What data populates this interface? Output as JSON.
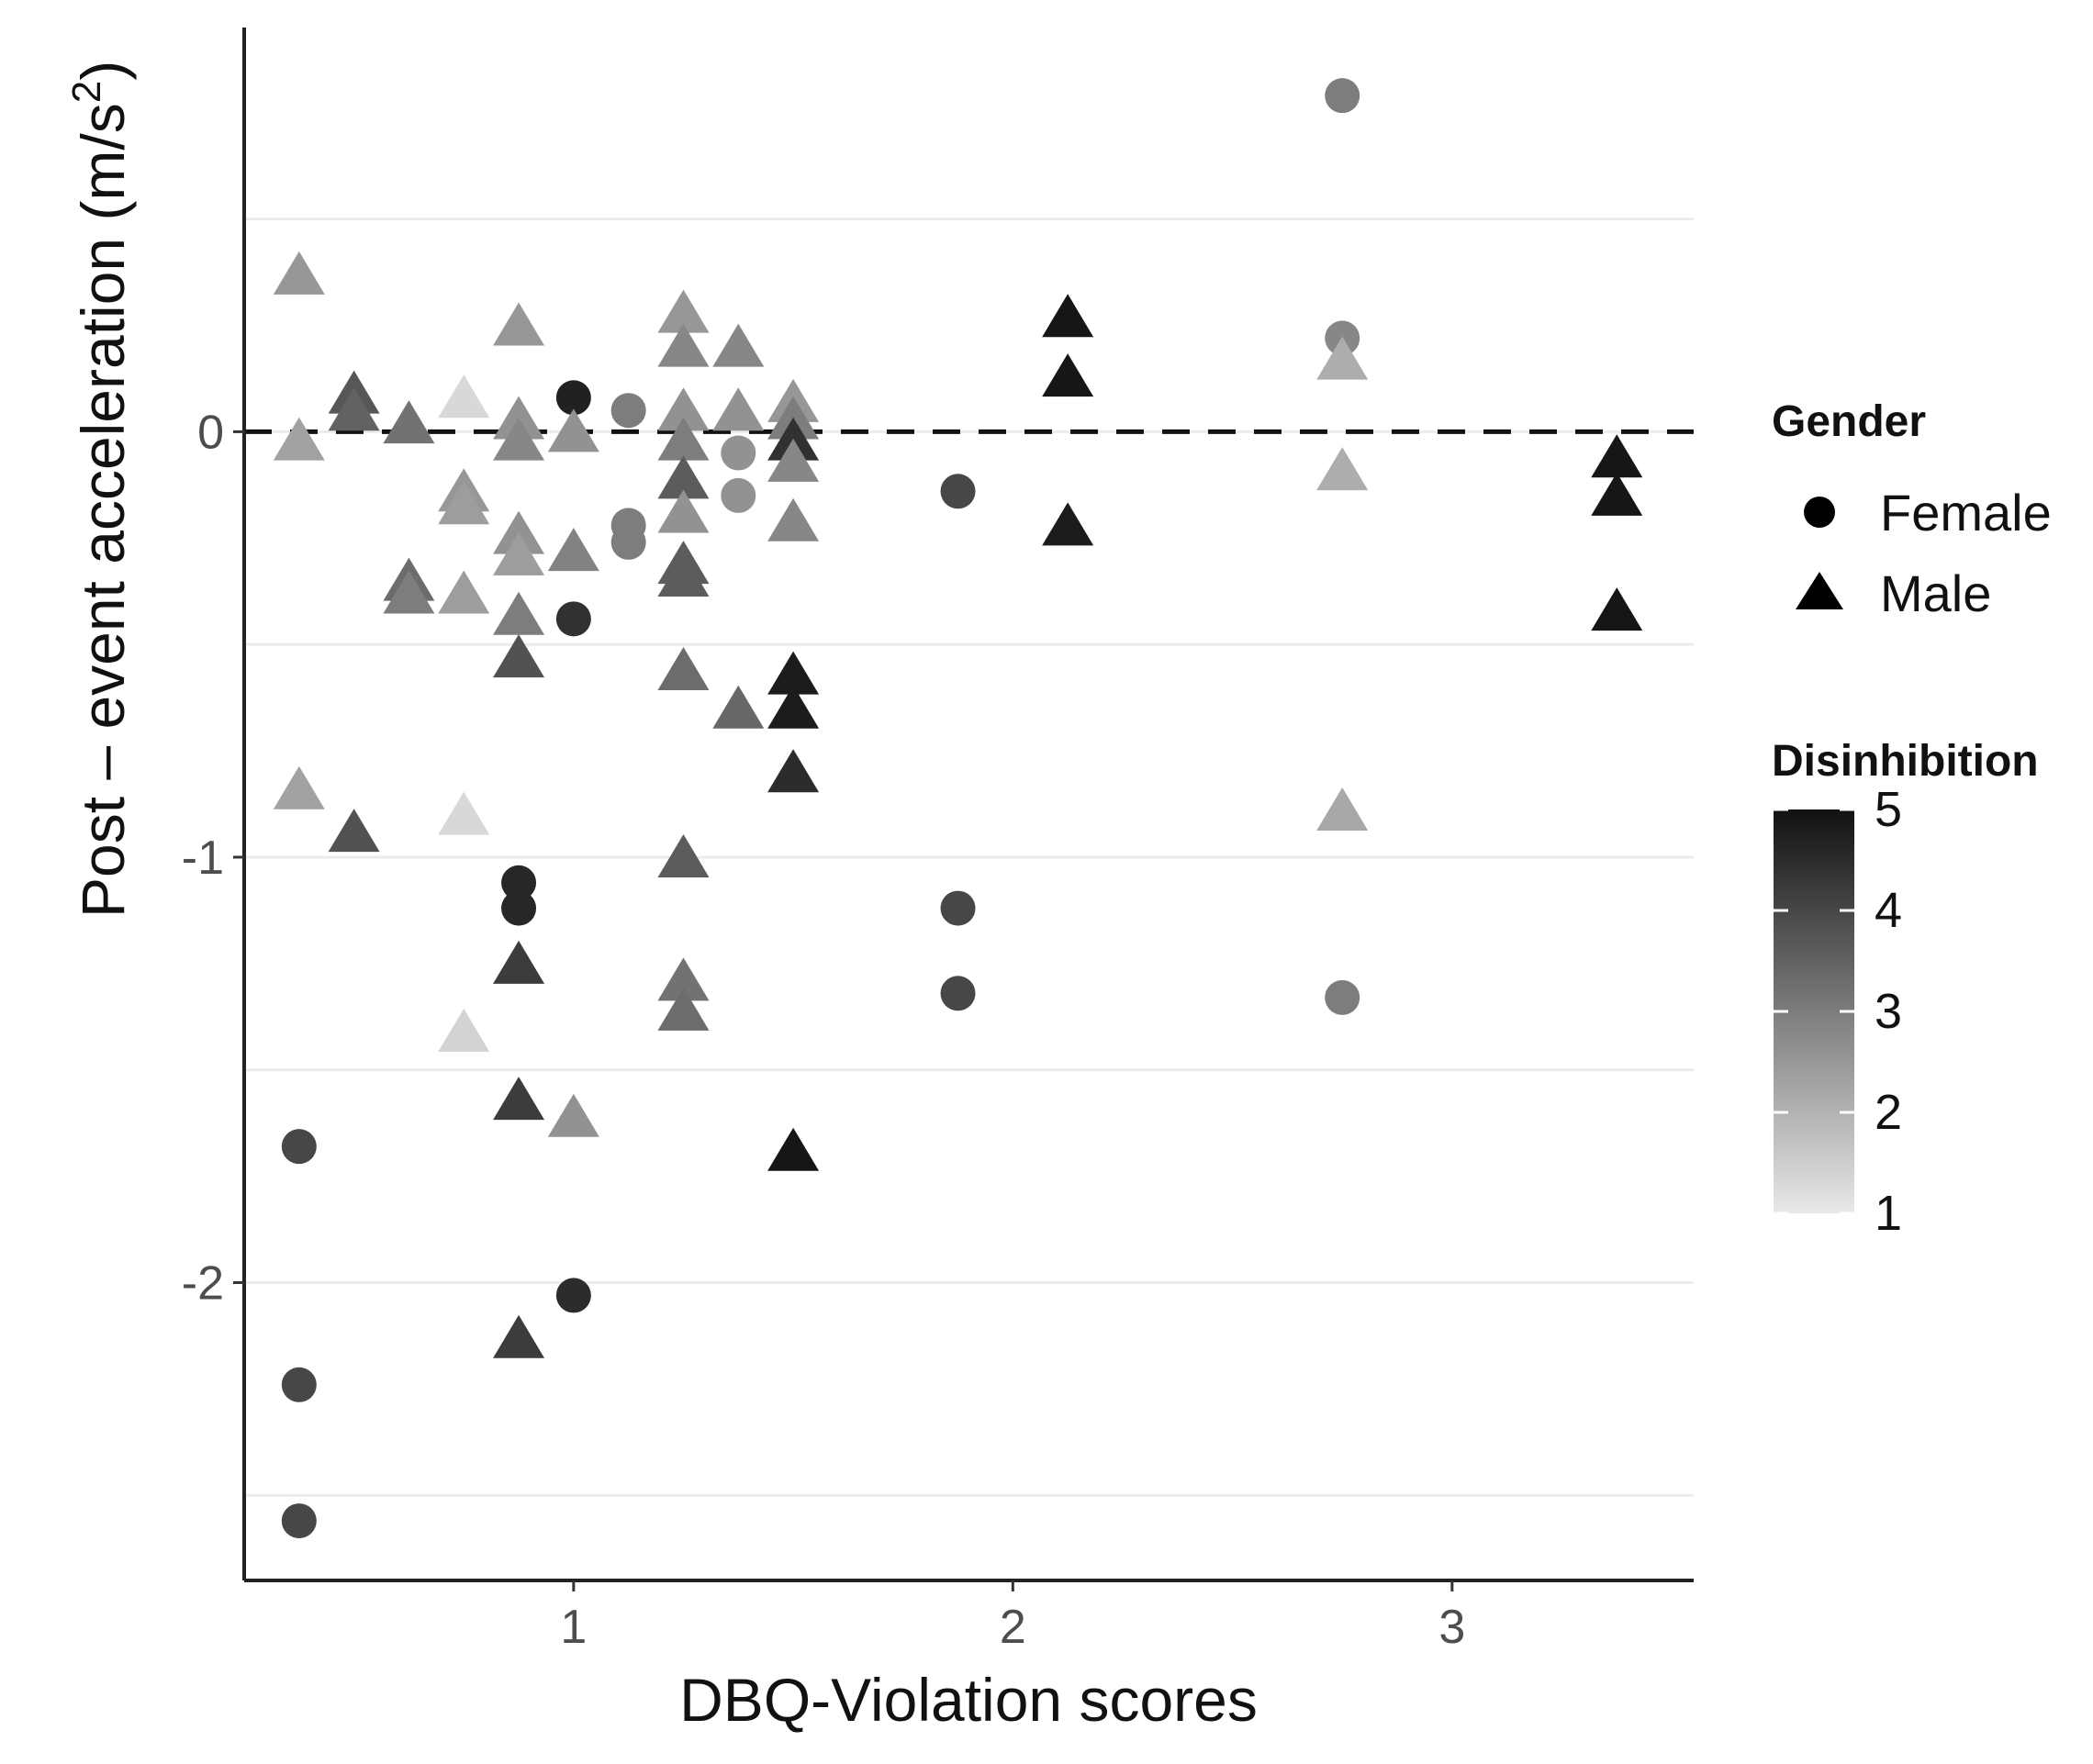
{
  "chart_data": {
    "type": "scatter",
    "title": "",
    "xlabel": "DBQ-Violation scores",
    "ylabel": "Post – event acceleration (m/s²)",
    "ylabel_main": "Post – event acceleration (m/s",
    "ylabel_sup": "2",
    "ylabel_close": ")",
    "xlim": [
      0.25,
      3.55
    ],
    "ylim": [
      -2.7,
      0.95
    ],
    "xticks": [
      1,
      2,
      3
    ],
    "yticks": [
      0,
      -1,
      -2
    ],
    "xtick_labels": [
      "1",
      "2",
      "3"
    ],
    "ytick_labels": [
      "0",
      "-1",
      "-2"
    ],
    "minor_gridlines_y": [
      0.5,
      -0.5,
      -1.5,
      -2.5
    ],
    "reference_line": {
      "y": 0,
      "style": "dashed"
    },
    "legend": {
      "position": "right",
      "shape_title": "Gender",
      "shape_entries": [
        {
          "label": "Female",
          "shape": "circle"
        },
        {
          "label": "Male",
          "shape": "triangle"
        }
      ],
      "color_title": "Disinhibition",
      "color_range": [
        1,
        5
      ],
      "color_ticks": [
        "1",
        "2",
        "3",
        "4",
        "5"
      ],
      "color_low": "#e8e8e8",
      "color_high": "#111111"
    },
    "series": [
      {
        "name": "Female",
        "shape": "circle",
        "points": [
          {
            "x": 0.375,
            "y": -1.68,
            "d": 4.0
          },
          {
            "x": 0.375,
            "y": -2.24,
            "d": 4.0
          },
          {
            "x": 0.375,
            "y": -2.56,
            "d": 4.0
          },
          {
            "x": 0.875,
            "y": -1.06,
            "d": 4.6
          },
          {
            "x": 0.875,
            "y": -1.12,
            "d": 4.6
          },
          {
            "x": 1.0,
            "y": 0.08,
            "d": 4.7
          },
          {
            "x": 1.0,
            "y": -0.44,
            "d": 4.4
          },
          {
            "x": 1.0,
            "y": -2.03,
            "d": 4.5
          },
          {
            "x": 1.125,
            "y": 0.05,
            "d": 3.0
          },
          {
            "x": 1.125,
            "y": -0.22,
            "d": 3.0
          },
          {
            "x": 1.125,
            "y": -0.26,
            "d": 3.0
          },
          {
            "x": 1.375,
            "y": -0.05,
            "d": 2.6
          },
          {
            "x": 1.375,
            "y": -0.15,
            "d": 2.6
          },
          {
            "x": 1.875,
            "y": -0.14,
            "d": 4.0
          },
          {
            "x": 1.875,
            "y": -1.12,
            "d": 4.0
          },
          {
            "x": 1.875,
            "y": -1.32,
            "d": 4.0
          },
          {
            "x": 2.75,
            "y": 0.79,
            "d": 3.0
          },
          {
            "x": 2.75,
            "y": 0.22,
            "d": 2.8
          },
          {
            "x": 2.75,
            "y": -1.33,
            "d": 3.0
          }
        ]
      },
      {
        "name": "Male",
        "shape": "triangle",
        "points": [
          {
            "x": 0.375,
            "y": 0.37,
            "d": 2.5
          },
          {
            "x": 0.375,
            "y": -0.02,
            "d": 2.3
          },
          {
            "x": 0.375,
            "y": -0.84,
            "d": 2.3
          },
          {
            "x": 0.5,
            "y": 0.09,
            "d": 3.7
          },
          {
            "x": 0.5,
            "y": 0.05,
            "d": 3.5
          },
          {
            "x": 0.5,
            "y": -0.94,
            "d": 3.8
          },
          {
            "x": 0.625,
            "y": 0.02,
            "d": 3.2
          },
          {
            "x": 0.625,
            "y": -0.35,
            "d": 3.3
          },
          {
            "x": 0.625,
            "y": -0.38,
            "d": 3.0
          },
          {
            "x": 0.75,
            "y": 0.08,
            "d": 1.3
          },
          {
            "x": 0.75,
            "y": -0.14,
            "d": 2.5
          },
          {
            "x": 0.75,
            "y": -0.17,
            "d": 2.4
          },
          {
            "x": 0.75,
            "y": -0.38,
            "d": 2.4
          },
          {
            "x": 0.75,
            "y": -0.9,
            "d": 1.3
          },
          {
            "x": 0.75,
            "y": -1.41,
            "d": 1.4
          },
          {
            "x": 0.875,
            "y": 0.25,
            "d": 2.5
          },
          {
            "x": 0.875,
            "y": 0.03,
            "d": 2.6
          },
          {
            "x": 0.875,
            "y": -0.02,
            "d": 2.8
          },
          {
            "x": 0.875,
            "y": -0.24,
            "d": 2.6
          },
          {
            "x": 0.875,
            "y": -0.29,
            "d": 2.4
          },
          {
            "x": 0.875,
            "y": -0.43,
            "d": 3.0
          },
          {
            "x": 0.875,
            "y": -0.53,
            "d": 3.8
          },
          {
            "x": 0.875,
            "y": -1.25,
            "d": 4.2
          },
          {
            "x": 0.875,
            "y": -1.57,
            "d": 4.2
          },
          {
            "x": 0.875,
            "y": -2.13,
            "d": 4.2
          },
          {
            "x": 1.0,
            "y": 0.0,
            "d": 2.6
          },
          {
            "x": 1.0,
            "y": -0.28,
            "d": 2.9
          },
          {
            "x": 1.0,
            "y": -1.61,
            "d": 2.6
          },
          {
            "x": 1.25,
            "y": 0.28,
            "d": 2.5
          },
          {
            "x": 1.25,
            "y": 0.2,
            "d": 2.8
          },
          {
            "x": 1.25,
            "y": 0.05,
            "d": 2.6
          },
          {
            "x": 1.25,
            "y": -0.02,
            "d": 3.0
          },
          {
            "x": 1.25,
            "y": -0.11,
            "d": 3.6
          },
          {
            "x": 1.25,
            "y": -0.19,
            "d": 2.6
          },
          {
            "x": 1.25,
            "y": -0.31,
            "d": 3.6
          },
          {
            "x": 1.25,
            "y": -0.34,
            "d": 3.6
          },
          {
            "x": 1.25,
            "y": -0.56,
            "d": 3.3
          },
          {
            "x": 1.25,
            "y": -1.0,
            "d": 3.6
          },
          {
            "x": 1.25,
            "y": -1.29,
            "d": 3.2
          },
          {
            "x": 1.25,
            "y": -1.36,
            "d": 3.3
          },
          {
            "x": 1.375,
            "y": 0.2,
            "d": 2.8
          },
          {
            "x": 1.375,
            "y": 0.05,
            "d": 2.6
          },
          {
            "x": 1.375,
            "y": -0.65,
            "d": 3.4
          },
          {
            "x": 1.5,
            "y": 0.07,
            "d": 2.5
          },
          {
            "x": 1.5,
            "y": 0.03,
            "d": 3.0
          },
          {
            "x": 1.5,
            "y": -0.02,
            "d": 4.4
          },
          {
            "x": 1.5,
            "y": -0.07,
            "d": 2.8
          },
          {
            "x": 1.5,
            "y": -0.21,
            "d": 2.8
          },
          {
            "x": 1.5,
            "y": -0.57,
            "d": 4.8
          },
          {
            "x": 1.5,
            "y": -0.65,
            "d": 4.8
          },
          {
            "x": 1.5,
            "y": -0.8,
            "d": 4.5
          },
          {
            "x": 1.5,
            "y": -1.69,
            "d": 4.9
          },
          {
            "x": 2.125,
            "y": 0.27,
            "d": 4.9
          },
          {
            "x": 2.125,
            "y": 0.13,
            "d": 4.9
          },
          {
            "x": 2.125,
            "y": -0.22,
            "d": 4.8
          },
          {
            "x": 2.75,
            "y": 0.17,
            "d": 2.1
          },
          {
            "x": 2.75,
            "y": -0.09,
            "d": 2.1
          },
          {
            "x": 2.75,
            "y": -0.89,
            "d": 2.2
          },
          {
            "x": 3.375,
            "y": -0.06,
            "d": 4.9
          },
          {
            "x": 3.375,
            "y": -0.15,
            "d": 4.9
          },
          {
            "x": 3.375,
            "y": -0.42,
            "d": 4.9
          }
        ]
      }
    ]
  }
}
